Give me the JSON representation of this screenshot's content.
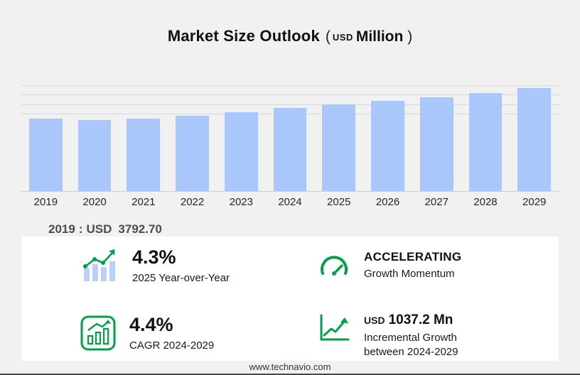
{
  "title": {
    "main": "Market Size Outlook",
    "open": "(",
    "currency": "USD",
    "unit": "Million",
    "close": ")"
  },
  "chart_data": {
    "type": "bar",
    "title": "Market Size Outlook (USD Million)",
    "categories": [
      "2019",
      "2020",
      "2021",
      "2022",
      "2023",
      "2024",
      "2025",
      "2026",
      "2027",
      "2028",
      "2029"
    ],
    "values": [
      3792.7,
      3700,
      3790,
      3945,
      4135,
      4328,
      4514,
      4710,
      4903,
      5100,
      5365.2
    ],
    "xlabel": "",
    "ylabel": "USD Million",
    "ylim": [
      0,
      5600
    ],
    "gridlines": [
      4000,
      4500,
      5000,
      5500
    ],
    "grid": "horizontal, top region only",
    "legend": "none",
    "bar_color": "#a9c7fa"
  },
  "base_note": {
    "year": "2019",
    "separator": ":",
    "currency": "USD",
    "value": "3792.70"
  },
  "stats": [
    {
      "icon": "yoy-bars-icon",
      "value": "4.3%",
      "label": "2025 Year-over-Year"
    },
    {
      "icon": "gauge-icon",
      "value": "ACCELERATING",
      "label": "Growth Momentum"
    },
    {
      "icon": "cagr-chart-icon",
      "value": "4.4%",
      "label": "CAGR 2024-2029"
    },
    {
      "icon": "trend-up-icon",
      "value_prefix": "USD",
      "value": "1037.2 Mn",
      "label": "Incremental Growth between 2024-2029"
    }
  ],
  "accent_color": "#00a14b",
  "footer": {
    "url": "www.technavio.com"
  }
}
